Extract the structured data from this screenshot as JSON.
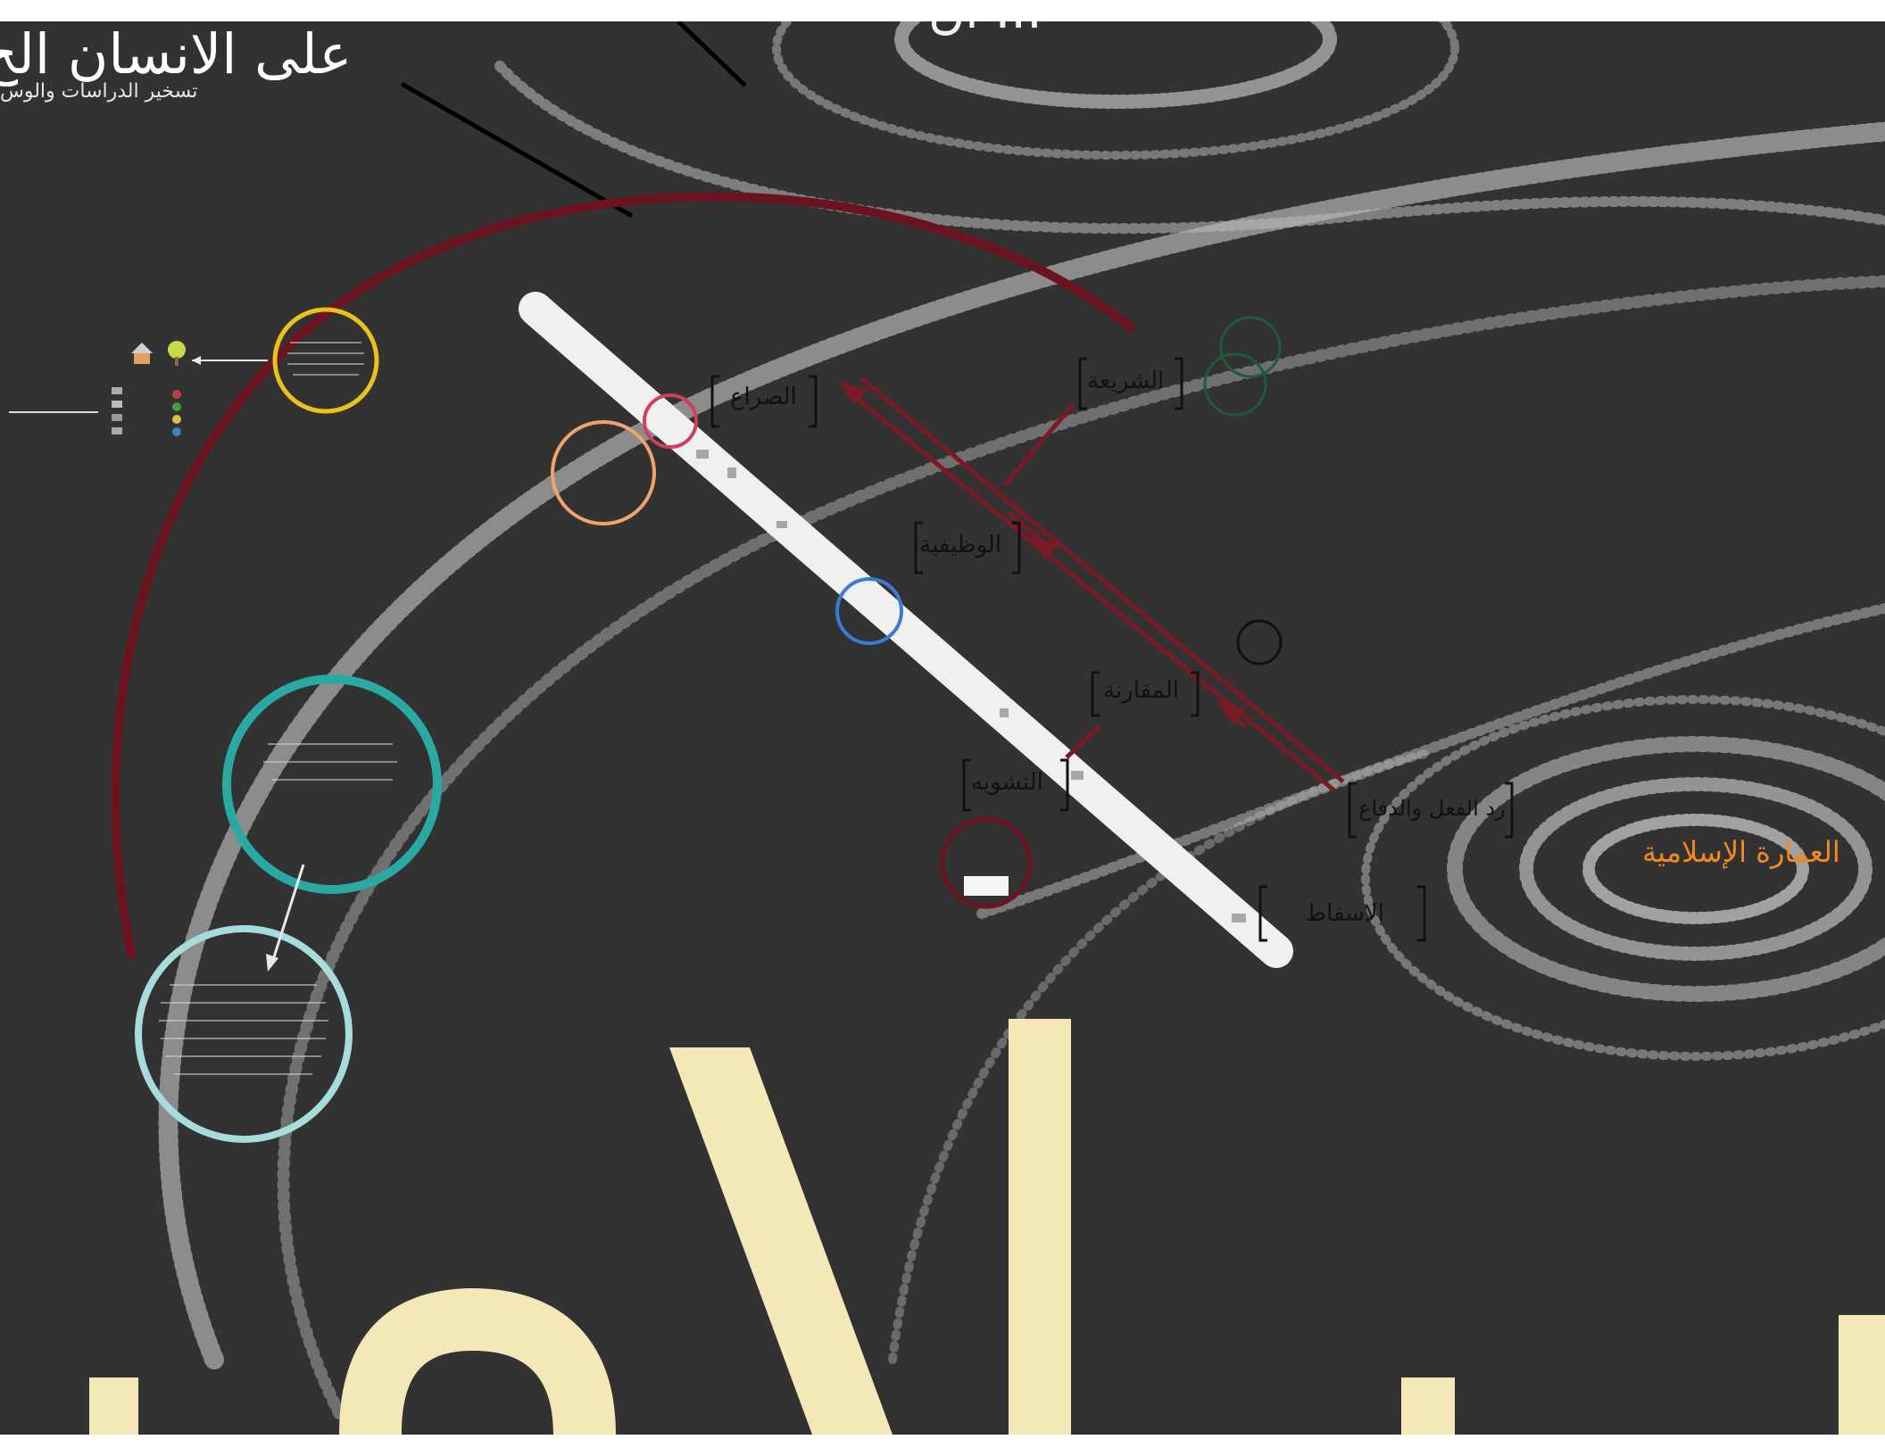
{
  "canvas": {
    "background": "#323232",
    "title": "على الانسان الح",
    "subtitle": "تسخير الدراسات والوس",
    "top_fragment": "ان ...",
    "orange_label": "العمارة الإسلامية"
  },
  "topics": [
    {
      "label": "الشريعة"
    },
    {
      "label": "الصراع"
    },
    {
      "label": "الوظيفية"
    },
    {
      "label": "المقارنة"
    },
    {
      "label": "التشويه"
    },
    {
      "label": "رد الفعل والدفاع"
    },
    {
      "label": "الاسقاط"
    }
  ],
  "colors": {
    "arc": "#6b1420",
    "arrow": "#7a1a26",
    "circle_yellow": "#e9c21b",
    "circle_orange": "#f0a36a",
    "circle_pink": "#d0405a",
    "circle_blue": "#3a7bd5",
    "circle_teal": "#2aa9a3",
    "circle_light_teal": "#a7dcdc",
    "circle_dark_green": "#1f5a3c",
    "circle_maroon": "#6b1420",
    "band": "#f0f0f0",
    "big_letters": "#f5e8b8",
    "orange_text": "#f08a1e"
  },
  "icons": [
    "house-icon",
    "tree-icon"
  ]
}
